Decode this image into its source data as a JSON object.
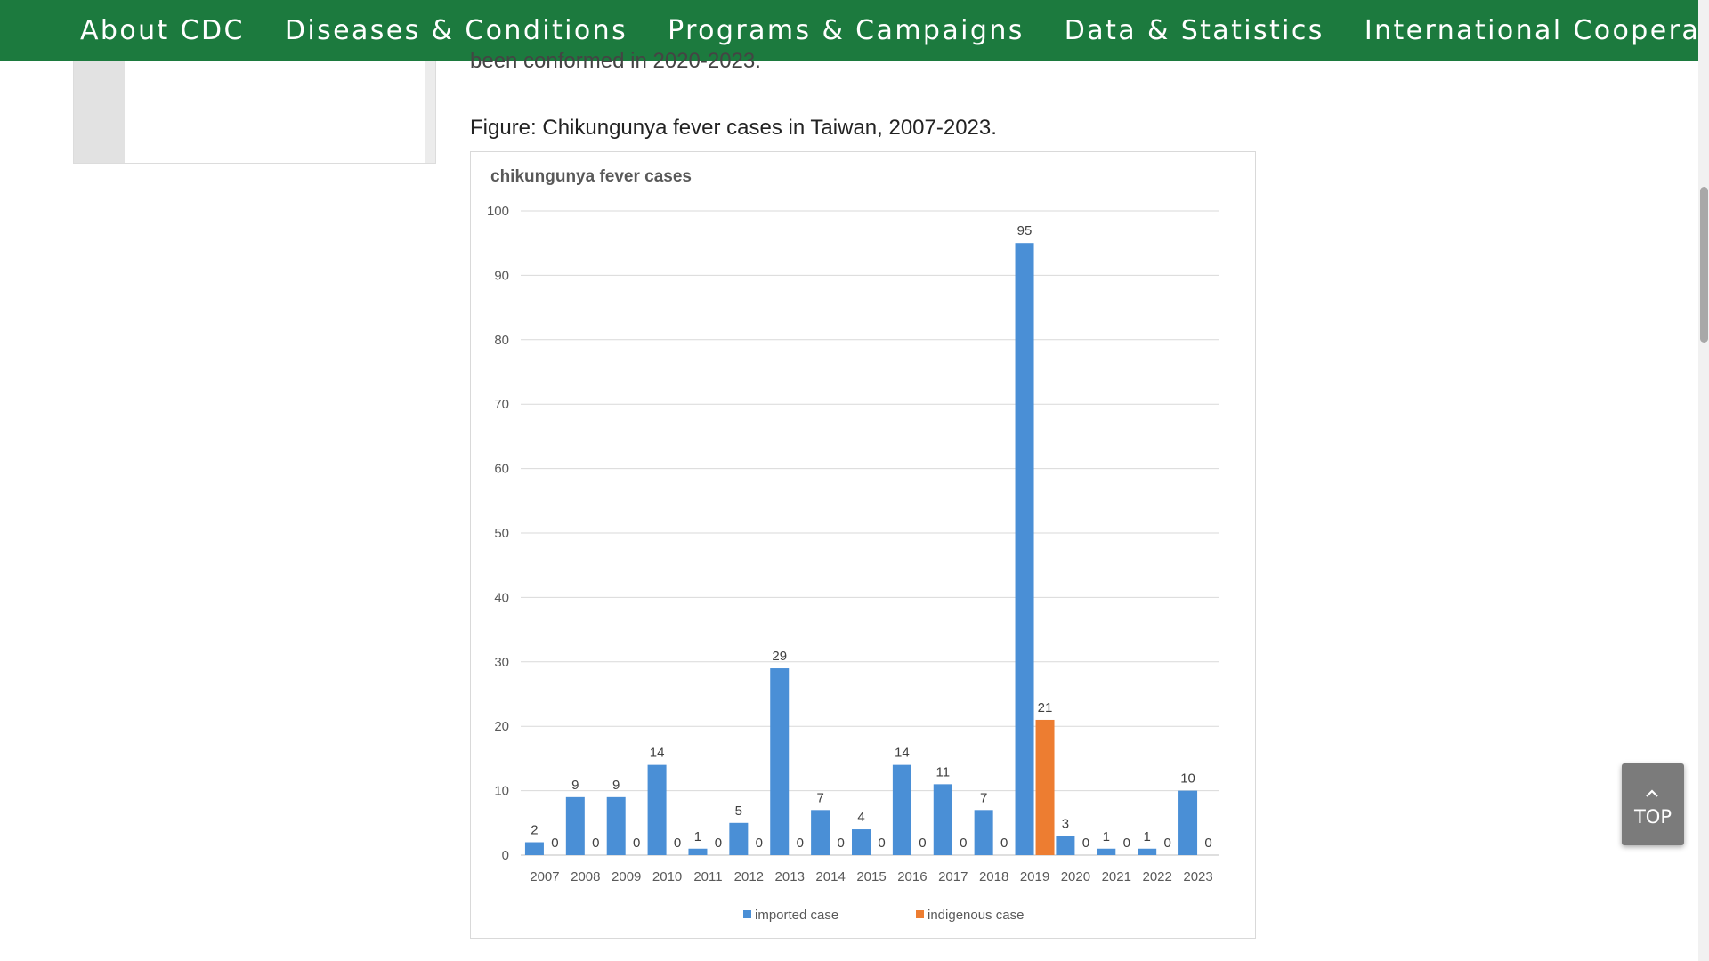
{
  "nav": {
    "items": [
      {
        "label": "About CDC"
      },
      {
        "label": "Diseases & Conditions"
      },
      {
        "label": "Programs & Campaigns"
      },
      {
        "label": "Data & Statistics"
      },
      {
        "label": "International Cooperation"
      }
    ],
    "background": "#1c7a3e"
  },
  "content": {
    "cut_text": "been conformed in 2020-2023.",
    "figure_caption": "Figure: Chikungunya fever cases in Taiwan, 2007-2023."
  },
  "top_button": {
    "label": "TOP",
    "icon": "chevron-up-icon"
  },
  "chart_data": {
    "type": "bar",
    "title": "chikungunya fever cases",
    "xlabel": "",
    "ylabel": "",
    "ylim": [
      0,
      100
    ],
    "yticks": [
      0,
      10,
      20,
      30,
      40,
      50,
      60,
      70,
      80,
      90,
      100
    ],
    "grid": true,
    "legend": "bottom",
    "categories": [
      "2007",
      "2008",
      "2009",
      "2010",
      "2011",
      "2012",
      "2013",
      "2014",
      "2015",
      "2016",
      "2017",
      "2018",
      "2019",
      "2020",
      "2021",
      "2022",
      "2023"
    ],
    "series": [
      {
        "name": "imported case",
        "color": "#4a8fd6",
        "values": [
          2,
          9,
          9,
          14,
          1,
          5,
          29,
          7,
          4,
          14,
          11,
          7,
          95,
          3,
          1,
          1,
          10
        ]
      },
      {
        "name": "indigenous case",
        "color": "#ed7d31",
        "values": [
          0,
          0,
          0,
          0,
          0,
          0,
          0,
          0,
          0,
          0,
          0,
          0,
          21,
          0,
          0,
          0,
          0
        ]
      }
    ]
  }
}
